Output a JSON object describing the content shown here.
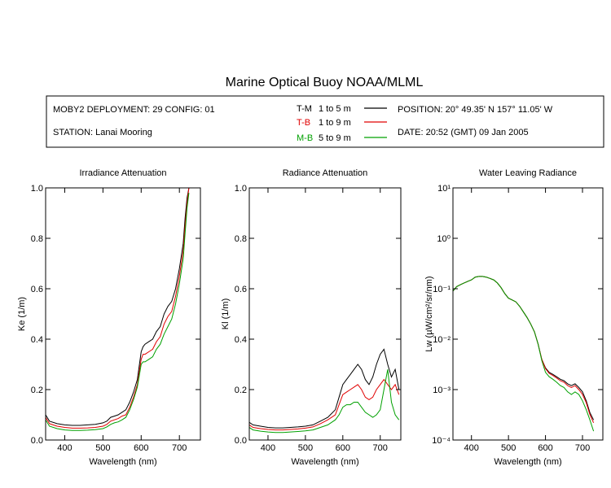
{
  "title": "Marine Optical Buoy NOAA/MLML",
  "header": {
    "deployment": "MOBY2 DEPLOYMENT: 29 CONFIG: 01",
    "station": "STATION: Lanai Mooring",
    "position": "POSITION: 20° 49.35' N   157° 11.05' W",
    "date": "DATE: 20:52 (GMT) 09 Jan 2005",
    "legend": [
      {
        "code": "T-M",
        "range": "1 to 5  m",
        "color": "#000000"
      },
      {
        "code": "T-B",
        "range": "1 to 9  m",
        "color": "#e00000"
      },
      {
        "code": "M-B",
        "range": "5 to 9  m",
        "color": "#00a000"
      }
    ]
  },
  "chart_data": [
    {
      "type": "line",
      "title": "Irradiance Attenuation",
      "xlabel": "Wavelength (nm)",
      "ylabel": "Ke  (1/m)",
      "xlim": [
        350,
        755
      ],
      "ylim": [
        0.0,
        1.0
      ],
      "xticks": [
        400,
        500,
        600,
        700
      ],
      "yticks": [
        0.0,
        0.2,
        0.4,
        0.6,
        0.8,
        1.0
      ],
      "ytick_labels": [
        "0.0",
        "0.2",
        "0.4",
        "0.6",
        "0.8",
        "1.0"
      ],
      "x": [
        350,
        360,
        380,
        400,
        420,
        440,
        460,
        480,
        500,
        510,
        520,
        530,
        540,
        550,
        560,
        570,
        580,
        590,
        600,
        605,
        610,
        620,
        630,
        640,
        650,
        660,
        670,
        680,
        690,
        700,
        710,
        715,
        720,
        725
      ],
      "series": [
        {
          "name": "T-M",
          "color": "#000000",
          "values": [
            0.1,
            0.075,
            0.065,
            0.06,
            0.058,
            0.058,
            0.06,
            0.062,
            0.068,
            0.075,
            0.09,
            0.095,
            0.1,
            0.11,
            0.12,
            0.15,
            0.19,
            0.24,
            0.35,
            0.37,
            0.38,
            0.39,
            0.4,
            0.43,
            0.45,
            0.5,
            0.53,
            0.55,
            0.6,
            0.68,
            0.78,
            0.88,
            0.96,
            1.0
          ]
        },
        {
          "name": "T-B",
          "color": "#e00000",
          "values": [
            0.09,
            0.065,
            0.055,
            0.05,
            0.047,
            0.047,
            0.048,
            0.05,
            0.055,
            0.062,
            0.075,
            0.08,
            0.085,
            0.095,
            0.1,
            0.13,
            0.17,
            0.22,
            0.32,
            0.34,
            0.34,
            0.35,
            0.36,
            0.39,
            0.41,
            0.46,
            0.49,
            0.51,
            0.57,
            0.65,
            0.75,
            0.85,
            0.94,
            1.0
          ]
        },
        {
          "name": "M-B",
          "color": "#00a000",
          "values": [
            0.08,
            0.055,
            0.045,
            0.04,
            0.038,
            0.038,
            0.039,
            0.041,
            0.045,
            0.052,
            0.062,
            0.068,
            0.072,
            0.08,
            0.09,
            0.12,
            0.16,
            0.21,
            0.3,
            0.31,
            0.31,
            0.32,
            0.33,
            0.36,
            0.38,
            0.42,
            0.45,
            0.48,
            0.54,
            0.62,
            0.72,
            0.82,
            0.92,
            0.98
          ]
        }
      ]
    },
    {
      "type": "line",
      "title": "Radiance Attenuation",
      "xlabel": "Wavelength (nm)",
      "ylabel": "Kl  (1/m)",
      "xlim": [
        350,
        755
      ],
      "ylim": [
        0.0,
        1.0
      ],
      "xticks": [
        400,
        500,
        600,
        700
      ],
      "yticks": [
        0.0,
        0.2,
        0.4,
        0.6,
        0.8,
        1.0
      ],
      "ytick_labels": [
        "0.0",
        "0.2",
        "0.4",
        "0.6",
        "0.8",
        "1.0"
      ],
      "x": [
        350,
        360,
        380,
        400,
        420,
        440,
        460,
        480,
        500,
        520,
        540,
        560,
        580,
        590,
        600,
        610,
        620,
        630,
        640,
        650,
        660,
        670,
        680,
        690,
        700,
        710,
        720,
        730,
        740,
        750
      ],
      "series": [
        {
          "name": "T-M",
          "color": "#000000",
          "values": [
            0.07,
            0.06,
            0.055,
            0.05,
            0.048,
            0.048,
            0.05,
            0.052,
            0.055,
            0.06,
            0.075,
            0.09,
            0.12,
            0.17,
            0.22,
            0.24,
            0.26,
            0.28,
            0.3,
            0.28,
            0.24,
            0.22,
            0.25,
            0.3,
            0.34,
            0.36,
            0.3,
            0.25,
            0.28,
            0.2
          ]
        },
        {
          "name": "T-B",
          "color": "#e00000",
          "values": [
            0.06,
            0.05,
            0.045,
            0.042,
            0.04,
            0.04,
            0.042,
            0.044,
            0.047,
            0.052,
            0.065,
            0.08,
            0.1,
            0.14,
            0.18,
            0.19,
            0.2,
            0.21,
            0.22,
            0.2,
            0.17,
            0.16,
            0.17,
            0.2,
            0.22,
            0.24,
            0.22,
            0.2,
            0.22,
            0.18
          ]
        },
        {
          "name": "M-B",
          "color": "#00a000",
          "values": [
            0.05,
            0.04,
            0.035,
            0.032,
            0.03,
            0.03,
            0.032,
            0.034,
            0.036,
            0.04,
            0.05,
            0.06,
            0.08,
            0.1,
            0.13,
            0.14,
            0.14,
            0.15,
            0.15,
            0.13,
            0.11,
            0.1,
            0.09,
            0.1,
            0.12,
            0.2,
            0.28,
            0.15,
            0.1,
            0.08
          ]
        }
      ]
    },
    {
      "type": "line",
      "title": "Water Leaving Radiance",
      "xlabel": "Wavelength (nm)",
      "ylabel": "Lw  (µW/cm²/sr/nm)",
      "xlim": [
        350,
        755
      ],
      "ylim": [
        0.0001,
        10
      ],
      "yscale": "log",
      "xticks": [
        400,
        500,
        600,
        700
      ],
      "yticks": [
        10,
        1,
        0.1,
        0.01,
        0.001,
        0.0001
      ],
      "ytick_labels": [
        "10¹",
        "10⁰",
        "10⁻¹",
        "10⁻²",
        "10⁻³",
        "10⁻⁴"
      ],
      "x": [
        350,
        360,
        370,
        380,
        390,
        400,
        410,
        420,
        430,
        440,
        450,
        460,
        470,
        480,
        490,
        500,
        510,
        520,
        530,
        540,
        550,
        560,
        570,
        580,
        590,
        600,
        610,
        620,
        630,
        640,
        650,
        660,
        670,
        680,
        690,
        700,
        710,
        720,
        730
      ],
      "series": [
        {
          "name": "T-M",
          "color": "#000000",
          "values": [
            0.09,
            0.11,
            0.12,
            0.13,
            0.14,
            0.15,
            0.17,
            0.175,
            0.175,
            0.17,
            0.16,
            0.15,
            0.13,
            0.105,
            0.08,
            0.065,
            0.06,
            0.055,
            0.045,
            0.035,
            0.027,
            0.02,
            0.014,
            0.008,
            0.004,
            0.0027,
            0.0022,
            0.002,
            0.0018,
            0.0016,
            0.0015,
            0.0013,
            0.0012,
            0.0013,
            0.0011,
            0.0009,
            0.0006,
            0.00035,
            0.00025
          ]
        },
        {
          "name": "T-B",
          "color": "#e00000",
          "values": [
            0.09,
            0.11,
            0.12,
            0.13,
            0.14,
            0.15,
            0.17,
            0.175,
            0.175,
            0.17,
            0.16,
            0.15,
            0.13,
            0.105,
            0.08,
            0.065,
            0.06,
            0.055,
            0.045,
            0.035,
            0.027,
            0.02,
            0.014,
            0.008,
            0.004,
            0.0026,
            0.0021,
            0.0019,
            0.0017,
            0.0015,
            0.0014,
            0.0012,
            0.0011,
            0.0012,
            0.001,
            0.0008,
            0.00055,
            0.00032,
            0.00022
          ]
        },
        {
          "name": "M-B",
          "color": "#00a000",
          "values": [
            0.09,
            0.11,
            0.12,
            0.13,
            0.14,
            0.15,
            0.17,
            0.175,
            0.175,
            0.17,
            0.16,
            0.15,
            0.13,
            0.105,
            0.08,
            0.065,
            0.06,
            0.055,
            0.045,
            0.035,
            0.027,
            0.02,
            0.014,
            0.008,
            0.0038,
            0.0022,
            0.0018,
            0.0016,
            0.0014,
            0.0012,
            0.0011,
            0.0009,
            0.0008,
            0.0009,
            0.0008,
            0.0006,
            0.0004,
            0.00025,
            0.00015
          ]
        }
      ]
    }
  ]
}
